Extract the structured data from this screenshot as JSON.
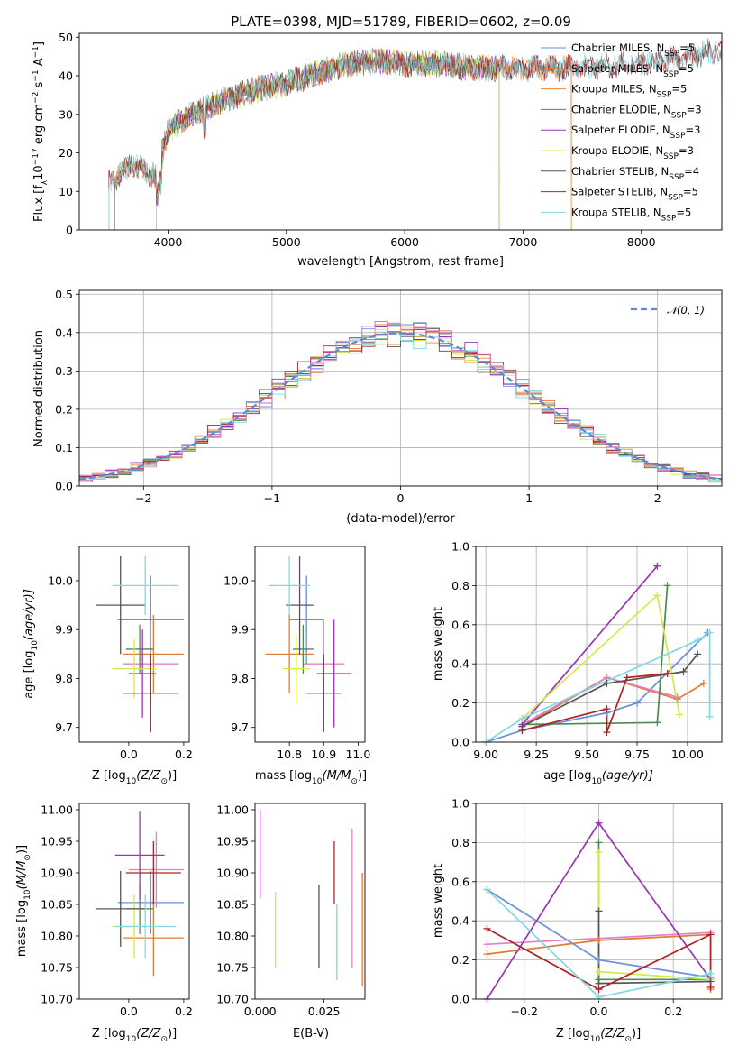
{
  "title": "PLATE=0398, MJD=51789, FIBERID=0602, z=0.09",
  "colors": {
    "Chabrier MILES": "#6b8ed8",
    "Salpeter MILES": "#e07b39",
    "Kroupa MILES": "#e88a33",
    "Chabrier ELODIE": "#4f8a4f",
    "Salpeter ELODIE": "#9a35b5",
    "Kroupa ELODIE": "#d4e84a",
    "Chabrier STELIB": "#555555",
    "Salpeter STELIB": "#b22222",
    "Kroupa STELIB": "#7fd9e0",
    "pink": "#e57fc4",
    "normal_curve": "#5b8ad6"
  },
  "chart_data": [
    {
      "id": "spectrum",
      "type": "line",
      "title": "PLATE=0398, MJD=51789, FIBERID=0602, z=0.09",
      "xlabel": "wavelength [Angstrom, rest frame]",
      "ylabel": "Flux [f",
      "ylabel_parts": [
        "Flux [f",
        "λ",
        "10",
        "−17",
        " erg cm",
        "−2",
        " s",
        "−1",
        " A",
        "−1",
        "]"
      ],
      "xlim": [
        3250,
        8680
      ],
      "ylim": [
        0,
        51
      ],
      "xticks": [
        4000,
        5000,
        6000,
        7000,
        8000
      ],
      "yticks": [
        0,
        10,
        20,
        30,
        40,
        50
      ],
      "legend": "right",
      "series": [
        {
          "name": "Chabrier MILES, N",
          "sub": "SSP",
          "tail": "=5",
          "color": "#6b8ed8",
          "range": [
            3550,
            7410
          ]
        },
        {
          "name": "Salpeter MILES, N",
          "sub": "SSP",
          "tail": "=5",
          "color": "#e07b39",
          "range": [
            3550,
            7410
          ]
        },
        {
          "name": "Kroupa MILES, N",
          "sub": "SSP",
          "tail": "=5",
          "color": "#e88a33",
          "range": [
            3550,
            7410
          ]
        },
        {
          "name": "Chabrier ELODIE, N",
          "sub": "SSP",
          "tail": "=3",
          "color": "#4f8a4f",
          "range": [
            3900,
            6800
          ]
        },
        {
          "name": "Salpeter ELODIE, N",
          "sub": "SSP",
          "tail": "=3",
          "color": "#9a35b5",
          "range": [
            3900,
            6800
          ]
        },
        {
          "name": "Kroupa ELODIE, N",
          "sub": "SSP",
          "tail": "=3",
          "color": "#d4e84a",
          "range": [
            3900,
            6800
          ]
        },
        {
          "name": "Chabrier STELIB, N",
          "sub": "SSP",
          "tail": "=4",
          "color": "#555555",
          "range": [
            3500,
            8680
          ]
        },
        {
          "name": "Salpeter STELIB, N",
          "sub": "SSP",
          "tail": "=5",
          "color": "#b22222",
          "range": [
            3500,
            8680
          ]
        },
        {
          "name": "Kroupa STELIB, N",
          "sub": "SSP",
          "tail": "=5",
          "color": "#7fd9e0",
          "range": [
            3500,
            8680
          ]
        }
      ],
      "approx_continuum": {
        "x": [
          3500,
          3700,
          3900,
          4000,
          4200,
          4500,
          4800,
          5000,
          5200,
          5500,
          5800,
          6000,
          6300,
          6600,
          7000,
          7400,
          8000,
          8400,
          8680
        ],
        "y": [
          12,
          17,
          14,
          26,
          30,
          34,
          37,
          38,
          40,
          43,
          44,
          43,
          43,
          42,
          42,
          42,
          43,
          45,
          47
        ]
      }
    },
    {
      "id": "residuals",
      "type": "line",
      "xlabel": "(data-model)/error",
      "ylabel": "Normed distribution",
      "xlim": [
        -2.5,
        2.5
      ],
      "ylim": [
        0,
        0.51
      ],
      "xticks": [
        -2,
        -1,
        0,
        1,
        2
      ],
      "yticks": [
        0.0,
        0.1,
        0.2,
        0.3,
        0.4,
        0.5
      ],
      "grid": true,
      "legend": "top-right",
      "legend_label": "𝒩(0, 1)",
      "bin_width": 0.1,
      "hist_colors": [
        "#6b8ed8",
        "#e07b39",
        "#e88a33",
        "#4f8a4f",
        "#9a35b5",
        "#d4e84a",
        "#555555",
        "#b22222",
        "#7fd9e0",
        "#e57fc4"
      ]
    },
    {
      "id": "age_vs_Z",
      "type": "scatter",
      "xlabel": "Z [log",
      "xlabel_parts": [
        "Z [log",
        "10",
        "(Z/Z",
        "⊙",
        ")]"
      ],
      "ylabel": "age  [log",
      "ylabel_parts": [
        "age  [log",
        "10",
        "(age/yr)]"
      ],
      "xlim": [
        -0.18,
        0.22
      ],
      "ylim": [
        9.67,
        10.07
      ],
      "xticks": [
        0.0,
        0.2
      ],
      "yticks": [
        9.7,
        9.8,
        9.9,
        10.0
      ],
      "points": [
        {
          "x": 0.08,
          "y": 9.92,
          "xerr": 0.12,
          "yerr": 0.09,
          "color": "#6b8ed8"
        },
        {
          "x": 0.09,
          "y": 9.85,
          "xerr": 0.11,
          "yerr": 0.08,
          "color": "#e07b39"
        },
        {
          "x": 0.08,
          "y": 9.83,
          "xerr": 0.1,
          "yerr": 0.08,
          "color": "#e57fc4"
        },
        {
          "x": 0.04,
          "y": 9.86,
          "xerr": 0.05,
          "yerr": 0.05,
          "color": "#4f8a4f"
        },
        {
          "x": 0.05,
          "y": 9.81,
          "xerr": 0.05,
          "yerr": 0.09,
          "color": "#9a35b5"
        },
        {
          "x": 0.02,
          "y": 9.82,
          "xerr": 0.08,
          "yerr": 0.06,
          "color": "#d4e84a"
        },
        {
          "x": -0.03,
          "y": 9.95,
          "xerr": 0.09,
          "yerr": 0.1,
          "color": "#555555"
        },
        {
          "x": 0.08,
          "y": 9.77,
          "xerr": 0.1,
          "yerr": 0.08,
          "color": "#b22222"
        },
        {
          "x": 0.06,
          "y": 9.99,
          "xerr": 0.12,
          "yerr": 0.06,
          "color": "#7fd9e0"
        }
      ]
    },
    {
      "id": "age_vs_mass",
      "type": "scatter",
      "xlabel": "mass [log",
      "xlabel_parts": [
        "mass [log",
        "10",
        "(M/M",
        "⊙",
        ")]"
      ],
      "ylabel": "",
      "xlim": [
        10.7,
        11.02
      ],
      "ylim": [
        9.67,
        10.07
      ],
      "xticks": [
        10.8,
        10.9,
        11.0
      ],
      "yticks": [
        9.7,
        9.8,
        9.9,
        10.0
      ],
      "points": [
        {
          "x": 10.85,
          "y": 9.92,
          "xerr": 0.05,
          "yerr": 0.09,
          "color": "#6b8ed8"
        },
        {
          "x": 10.8,
          "y": 9.85,
          "xerr": 0.07,
          "yerr": 0.08,
          "color": "#e07b39"
        },
        {
          "x": 10.9,
          "y": 9.83,
          "xerr": 0.06,
          "yerr": 0.09,
          "color": "#e57fc4"
        },
        {
          "x": 10.84,
          "y": 9.86,
          "xerr": 0.03,
          "yerr": 0.05,
          "color": "#4f8a4f"
        },
        {
          "x": 10.93,
          "y": 9.81,
          "xerr": 0.05,
          "yerr": 0.11,
          "color": "#9a35b5"
        },
        {
          "x": 10.82,
          "y": 9.82,
          "xerr": 0.04,
          "yerr": 0.07,
          "color": "#d4e84a"
        },
        {
          "x": 10.83,
          "y": 9.95,
          "xerr": 0.04,
          "yerr": 0.1,
          "color": "#555555"
        },
        {
          "x": 10.9,
          "y": 9.77,
          "xerr": 0.05,
          "yerr": 0.08,
          "color": "#b22222"
        },
        {
          "x": 10.8,
          "y": 9.99,
          "xerr": 0.06,
          "yerr": 0.06,
          "color": "#7fd9e0"
        }
      ]
    },
    {
      "id": "weight_vs_age",
      "type": "line",
      "xlabel": "age  [log",
      "xlabel_parts": [
        "age  [log",
        "10",
        "(age/yr)]"
      ],
      "ylabel": "mass weight",
      "xlim": [
        8.95,
        10.17
      ],
      "ylim": [
        0,
        1
      ],
      "xticks": [
        9.0,
        9.25,
        9.5,
        9.75,
        10.0
      ],
      "yticks": [
        0.0,
        0.2,
        0.4,
        0.6,
        0.8,
        1.0
      ],
      "grid": true,
      "series": [
        {
          "color": "#6b8ed8",
          "x": [
            9.0,
            9.18,
            9.6,
            9.75,
            10.1
          ],
          "y": [
            0.0,
            0.06,
            0.15,
            0.2,
            0.56
          ]
        },
        {
          "color": "#e07b39",
          "x": [
            9.18,
            9.6,
            9.95,
            10.08
          ],
          "y": [
            0.08,
            0.33,
            0.22,
            0.3
          ]
        },
        {
          "color": "#e57fc4",
          "x": [
            9.18,
            9.6,
            9.95
          ],
          "y": [
            0.09,
            0.33,
            0.23
          ]
        },
        {
          "color": "#4f8a4f",
          "x": [
            9.18,
            9.85,
            9.9
          ],
          "y": [
            0.09,
            0.1,
            0.8
          ]
        },
        {
          "color": "#9a35b5",
          "x": [
            9.18,
            9.85
          ],
          "y": [
            0.09,
            0.9
          ]
        },
        {
          "color": "#d4e84a",
          "x": [
            9.18,
            9.85,
            9.96
          ],
          "y": [
            0.12,
            0.75,
            0.14
          ]
        },
        {
          "color": "#555555",
          "x": [
            9.18,
            9.6,
            9.98,
            10.05
          ],
          "y": [
            0.08,
            0.3,
            0.36,
            0.45
          ]
        },
        {
          "color": "#b22222",
          "x": [
            9.18,
            9.6,
            9.6,
            9.7,
            9.9
          ],
          "y": [
            0.06,
            0.17,
            0.05,
            0.33,
            0.35
          ]
        },
        {
          "color": "#7fd9e0",
          "x": [
            9.0,
            9.18,
            10.05,
            10.11,
            10.11
          ],
          "y": [
            0.0,
            0.12,
            0.52,
            0.56,
            0.13
          ]
        }
      ]
    },
    {
      "id": "mass_vs_Z",
      "type": "scatter",
      "xlabel": "Z [log",
      "xlabel_parts": [
        "Z [log",
        "10",
        "(Z/Z",
        "⊙",
        ")]"
      ],
      "ylabel": "mass [log",
      "ylabel_parts": [
        "mass [log",
        "10",
        "(M/M",
        "⊙",
        ")]"
      ],
      "xlim": [
        -0.18,
        0.22
      ],
      "ylim": [
        10.7,
        11.01
      ],
      "xticks": [
        0.0,
        0.2
      ],
      "yticks": [
        10.7,
        10.75,
        10.8,
        10.85,
        10.9,
        10.95,
        11.0
      ],
      "points": [
        {
          "x": 0.08,
          "y": 10.853,
          "xerr": 0.12,
          "yerr": 0.05,
          "color": "#6b8ed8"
        },
        {
          "x": 0.09,
          "y": 10.797,
          "xerr": 0.11,
          "yerr": 0.06,
          "color": "#e07b39"
        },
        {
          "x": 0.1,
          "y": 10.905,
          "xerr": 0.1,
          "yerr": 0.06,
          "color": "#e57fc4"
        },
        {
          "x": 0.04,
          "y": 10.843,
          "xerr": 0.05,
          "yerr": 0.04,
          "color": "#4f8a4f"
        },
        {
          "x": 0.04,
          "y": 10.928,
          "xerr": 0.09,
          "yerr": 0.07,
          "color": "#9a35b5"
        },
        {
          "x": 0.02,
          "y": 10.815,
          "xerr": 0.08,
          "yerr": 0.05,
          "color": "#d4e84a"
        },
        {
          "x": -0.03,
          "y": 10.843,
          "xerr": 0.09,
          "yerr": 0.06,
          "color": "#555555"
        },
        {
          "x": 0.09,
          "y": 10.9,
          "xerr": 0.1,
          "yerr": 0.05,
          "color": "#b22222"
        },
        {
          "x": 0.06,
          "y": 10.815,
          "xerr": 0.11,
          "yerr": 0.05,
          "color": "#7fd9e0"
        }
      ]
    },
    {
      "id": "mass_vs_EBV",
      "type": "scatter",
      "xlabel": "E(B-V)",
      "ylabel": "",
      "xlim": [
        -0.002,
        0.041
      ],
      "ylim": [
        10.7,
        11.01
      ],
      "xticks": [
        0.0,
        0.025
      ],
      "yticks": [
        10.7,
        10.75,
        10.8,
        10.85,
        10.9,
        10.95,
        11.0
      ],
      "points": [
        {
          "x": 0.0,
          "y": 10.93,
          "yerr": 0.07,
          "color": "#9a35b5"
        },
        {
          "x": 0.006,
          "y": 10.81,
          "yerr": 0.06,
          "color": "#d4e84a"
        },
        {
          "x": 0.023,
          "y": 10.815,
          "yerr": 0.065,
          "color": "#555555"
        },
        {
          "x": 0.029,
          "y": 10.9,
          "yerr": 0.05,
          "color": "#b22222"
        },
        {
          "x": 0.03,
          "y": 10.79,
          "yerr": 0.06,
          "color": "#7fd9e0"
        },
        {
          "x": 0.036,
          "y": 10.86,
          "yerr": 0.11,
          "color": "#e57fc4"
        },
        {
          "x": 0.04,
          "y": 10.81,
          "yerr": 0.09,
          "color": "#e07b39"
        }
      ]
    },
    {
      "id": "weight_vs_Z",
      "type": "line",
      "xlabel": "Z [log",
      "xlabel_parts": [
        "Z [log",
        "10",
        "(Z/Z",
        "⊙",
        ")]"
      ],
      "ylabel": "mass weight",
      "xlim": [
        -0.33,
        0.33
      ],
      "ylim": [
        0,
        1
      ],
      "xticks": [
        -0.2,
        0.0,
        0.2
      ],
      "yticks": [
        0.0,
        0.2,
        0.4,
        0.6,
        0.8,
        1.0
      ],
      "grid": true,
      "series": [
        {
          "color": "#6b8ed8",
          "x": [
            -0.3,
            0.0,
            0.3
          ],
          "y": [
            0.56,
            0.2,
            0.11
          ]
        },
        {
          "color": "#e07b39",
          "x": [
            -0.3,
            0.0,
            0.3,
            0.3
          ],
          "y": [
            0.23,
            0.3,
            0.33,
            0.05
          ]
        },
        {
          "color": "#e57fc4",
          "x": [
            -0.3,
            0.3
          ],
          "y": [
            0.28,
            0.34
          ]
        },
        {
          "color": "#4f8a4f",
          "x": [
            0.0,
            0.0,
            0.3
          ],
          "y": [
            0.8,
            0.1,
            0.1
          ]
        },
        {
          "color": "#9a35b5",
          "x": [
            -0.3,
            0.0,
            0.3
          ],
          "y": [
            0.0,
            0.9,
            0.1
          ]
        },
        {
          "color": "#d4e84a",
          "x": [
            0.0,
            0.0,
            0.3
          ],
          "y": [
            0.75,
            0.14,
            0.1
          ]
        },
        {
          "color": "#555555",
          "x": [
            0.0,
            0.0,
            0.3
          ],
          "y": [
            0.45,
            0.08,
            0.09
          ]
        },
        {
          "color": "#b22222",
          "x": [
            -0.3,
            0.0,
            0.3,
            0.3
          ],
          "y": [
            0.36,
            0.05,
            0.33,
            0.06
          ]
        },
        {
          "color": "#7fd9e0",
          "x": [
            -0.3,
            0.0,
            0.3
          ],
          "y": [
            0.56,
            0.01,
            0.13
          ]
        }
      ]
    }
  ]
}
